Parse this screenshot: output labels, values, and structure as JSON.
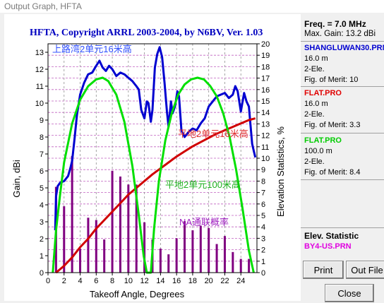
{
  "window": {
    "title": "Output Graph, HFTA"
  },
  "chart_data": {
    "type": "line",
    "title": "HFTA, Copyright ARRL 2003-2004, by N6BV, Ver. 1.03",
    "xlabel": "Takeoff Angle, Degrees",
    "ylabel": "Gain, dBi",
    "y2label": "Elevation Statistics, %",
    "xlim": [
      0,
      26
    ],
    "ylim": [
      0,
      13.5
    ],
    "y2lim": [
      0,
      20
    ],
    "xticks": [
      "0",
      "2",
      "4",
      "6",
      "8",
      "10",
      "12",
      "14",
      "16",
      "18",
      "20",
      "22",
      "24"
    ],
    "yticks": [
      "0",
      "1",
      "2",
      "3",
      "4",
      "5",
      "6",
      "7",
      "8",
      "9",
      "10",
      "11",
      "12",
      "13"
    ],
    "y2ticks": [
      "0",
      "1",
      "2",
      "3",
      "4",
      "5",
      "6",
      "7",
      "8",
      "9",
      "10",
      "11",
      "12",
      "13",
      "14",
      "15",
      "16",
      "17",
      "18",
      "19",
      "20"
    ],
    "grid": true,
    "annotations": [
      "上路湾2单元16米高",
      "平地2单元16米高",
      "平地2单元100米高",
      "NA通联概率"
    ],
    "series": [
      {
        "name": "SHANGLUWAN30.PRN",
        "color": "#0000d0",
        "x": [
          0.9,
          1.0,
          1.2,
          1.5,
          2.0,
          2.5,
          2.8,
          3.0,
          3.3,
          3.6,
          4.0,
          4.5,
          5.0,
          5.5,
          6.0,
          6.4,
          6.8,
          7.2,
          7.6,
          8.0,
          8.5,
          9.0,
          9.5,
          10.0,
          10.5,
          11.0,
          11.3,
          11.6,
          12.0,
          12.3,
          12.5,
          12.8,
          13.0,
          13.3,
          13.6,
          13.9,
          14.2,
          14.5,
          14.8,
          15.0,
          15.3,
          15.5,
          15.8,
          16.1,
          16.3,
          16.6,
          17.0,
          17.5,
          18.0,
          18.5,
          19.0,
          19.5,
          20.0,
          20.5,
          21.0,
          21.5,
          22.0,
          22.5,
          23.0,
          23.3,
          23.6,
          24.0,
          24.4,
          24.7,
          25.0,
          25.2,
          25.4,
          25.6,
          25.8
        ],
        "y": [
          2.5,
          4.5,
          5.1,
          5.3,
          5.4,
          5.7,
          6.2,
          6.6,
          7.9,
          9.3,
          10.5,
          11.2,
          11.7,
          11.8,
          12.2,
          12.5,
          12.1,
          11.9,
          12.2,
          12.0,
          11.6,
          11.8,
          11.7,
          11.5,
          11.3,
          11.0,
          10.8,
          9.6,
          9.1,
          10.1,
          10.0,
          8.9,
          9.6,
          12.1,
          12.9,
          13.3,
          12.7,
          11.2,
          9.5,
          8.6,
          10.1,
          9.4,
          9.8,
          10.7,
          10.4,
          8.4,
          8.0,
          8.3,
          8.5,
          8.4,
          8.8,
          9.1,
          9.8,
          10.1,
          10.4,
          10.5,
          10.6,
          10.3,
          10.5,
          11.0,
          10.7,
          9.5,
          10.6,
          10.1,
          9.8,
          8.7,
          7.6,
          7.2,
          6.8
        ]
      },
      {
        "name": "FLAT.PRO 16.0 m",
        "color": "#d00000",
        "x": [
          1.0,
          2,
          3,
          4,
          5,
          6,
          7,
          8,
          9,
          10,
          11,
          12,
          13,
          14,
          15,
          16,
          17,
          18,
          19,
          20,
          21,
          22,
          23,
          24,
          25,
          25.8
        ],
        "y": [
          0.0,
          0.4,
          0.9,
          1.5,
          2.0,
          2.6,
          3.1,
          3.6,
          4.1,
          4.6,
          5.0,
          5.4,
          5.8,
          6.15,
          6.5,
          6.85,
          7.15,
          7.45,
          7.7,
          7.95,
          8.2,
          8.4,
          8.6,
          8.8,
          9.0,
          9.1
        ]
      },
      {
        "name": "FLAT.PRO 100.0 m",
        "color": "#00e000",
        "x": [
          0.6,
          1.0,
          1.5,
          2.0,
          3.0,
          4.0,
          5.0,
          6.0,
          6.8,
          7.5,
          8.5,
          9.5,
          10.5,
          11.3,
          11.9,
          12.3,
          12.5,
          12.8,
          13.2,
          13.8,
          14.6,
          15.4,
          16.2,
          17.0,
          17.8,
          18.6,
          19.4,
          20.2,
          21.0,
          21.8,
          22.6,
          23.4,
          24.2,
          25.0,
          25.6
        ],
        "y": [
          0.0,
          2.5,
          4.6,
          6.5,
          8.8,
          10.2,
          11.0,
          11.4,
          11.5,
          11.3,
          10.5,
          8.9,
          6.3,
          3.4,
          1.0,
          0.0,
          0.0,
          0.0,
          2.6,
          5.4,
          7.8,
          9.4,
          10.5,
          11.1,
          11.4,
          11.5,
          11.4,
          11.0,
          10.4,
          9.4,
          8.0,
          6.1,
          3.8,
          1.3,
          0.0
        ]
      }
    ],
    "elevation_statistics": {
      "name": "BY4-US.PRN",
      "color": "#800080",
      "x": [
        1,
        2,
        3,
        4,
        5,
        6,
        7,
        8,
        9,
        10,
        11,
        12,
        13,
        14,
        15,
        16,
        17,
        18,
        19,
        20,
        21,
        22,
        23,
        24,
        25
      ],
      "values": [
        7.5,
        5.8,
        10.2,
        2.1,
        4.8,
        4.6,
        2.9,
        8.9,
        8.4,
        7.7,
        7.7,
        4.4,
        2.9,
        2.1,
        1.6,
        3.0,
        4.5,
        3.7,
        4.1,
        3.9,
        2.5,
        3.2,
        1.8,
        1.2,
        1.2
      ]
    }
  },
  "panel": {
    "freq_label": "Freq. = 7.0 MHz",
    "max_gain": "Max. Gain: 13.2 dBi",
    "antennas": [
      {
        "name": "SHANGLUWAN30.PRN",
        "color": "#0000d0",
        "height": "16.0 m",
        "type": "2-Ele.",
        "merit": "Fig. of Merit:  10"
      },
      {
        "name": "FLAT.PRO",
        "color": "#e00000",
        "height": "16.0 m",
        "type": "2-Ele.",
        "merit": "Fig. of Merit:  3.3"
      },
      {
        "name": "FLAT.PRO",
        "color": "#00cc00",
        "height": "100.0 m",
        "type": "2-Ele.",
        "merit": "Fig. of Merit:  8.4"
      }
    ],
    "elev_title": "Elev. Statistic",
    "elev_file": "BY4-US.PRN",
    "elev_color": "#e000e0"
  },
  "buttons": {
    "print": "Print",
    "out_file": "Out File",
    "close": "Close"
  }
}
